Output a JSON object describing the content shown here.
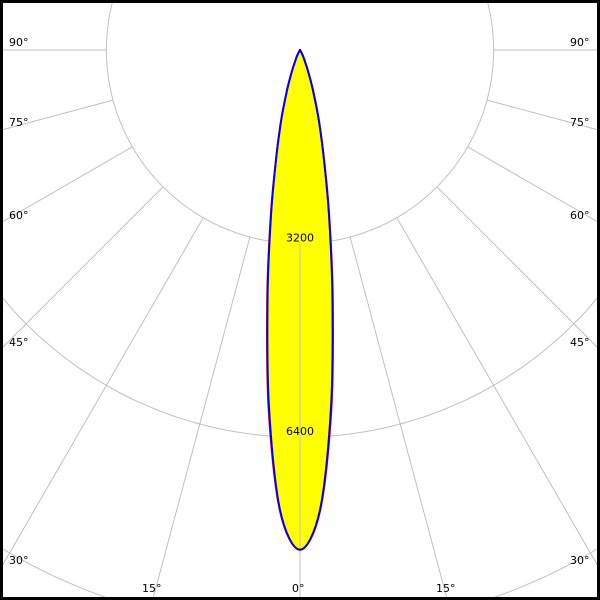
{
  "chart_data": {
    "type": "polar-line",
    "title": "",
    "radial_unit": "",
    "radial_ticks": [
      3200,
      6400,
      9600
    ],
    "radial_tick_labels": [
      "3200",
      "6400"
    ],
    "angle_ticks": [
      0,
      15,
      30,
      45,
      60,
      75,
      90
    ],
    "angle_tick_labels_left": [
      "90°",
      "75°",
      "60°",
      "45°",
      "30°",
      "15°",
      "0°"
    ],
    "angle_tick_labels_right": [
      "90°",
      "75°",
      "60°",
      "45°",
      "30°",
      "15°"
    ],
    "grid": true,
    "angles": [
      0,
      2.5,
      5,
      7.5,
      10,
      12.5,
      15,
      17.5,
      20,
      25,
      30,
      40,
      60,
      90
    ],
    "series": [
      {
        "color": "#ff0000",
        "fill": "#ffff00",
        "values": [
          8260,
          7620,
          5950,
          4150,
          2780,
          1820,
          1210,
          760,
          460,
          160,
          40,
          0,
          0,
          0
        ]
      },
      {
        "color": "#0000ff",
        "fill": "#ffff00",
        "values": [
          8260,
          7600,
          5900,
          4100,
          2750,
          1800,
          1200,
          750,
          450,
          150,
          40,
          0,
          0,
          0
        ]
      }
    ]
  }
}
